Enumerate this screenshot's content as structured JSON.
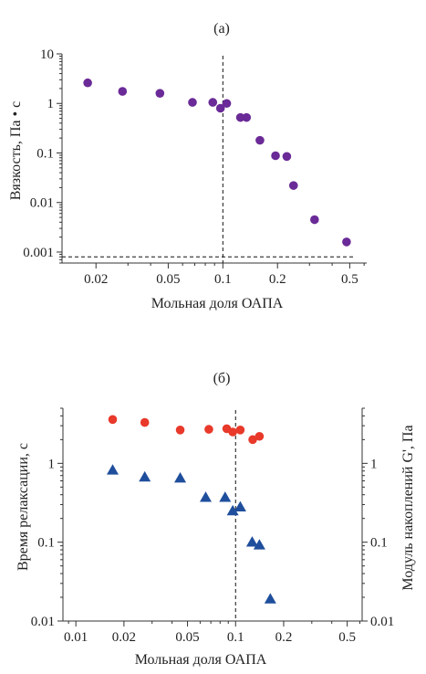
{
  "chart_data": [
    {
      "type": "scatter",
      "title": "(a)",
      "xlabel": "Мольная доля ОАПА",
      "ylabel": "Вязкость, Па • с",
      "x_scale": "log",
      "y_scale": "log",
      "xlim": [
        0.013,
        0.62
      ],
      "ylim": [
        0.0006,
        10
      ],
      "xticks": [
        0.02,
        0.05,
        0.1,
        0.2,
        0.5
      ],
      "xtick_labels": [
        "0.02",
        "0.05",
        "0.1",
        "0.2",
        "0.5"
      ],
      "yticks": [
        10,
        1,
        0.1,
        0.01,
        0.001
      ],
      "ytick_labels": [
        "10",
        "1",
        "0.1",
        "0.01",
        "0.001"
      ],
      "vertical_reference_x": 0.1,
      "horizontal_reference_y": 0.0008,
      "grid": false,
      "series": [
        {
          "marker": "circle",
          "color": "#6a2a97",
          "x": [
            0.018,
            0.028,
            0.045,
            0.068,
            0.088,
            0.097,
            0.105,
            0.125,
            0.135,
            0.16,
            0.195,
            0.225,
            0.245,
            0.32,
            0.48
          ],
          "y": [
            2.6,
            1.75,
            1.6,
            1.05,
            1.05,
            0.8,
            1.0,
            0.52,
            0.52,
            0.18,
            0.088,
            0.085,
            0.022,
            0.0045,
            0.0016
          ]
        }
      ]
    },
    {
      "type": "scatter",
      "title": "(б)",
      "xlabel": "Мольная доля ОАПА",
      "ylabel": "Время релаксации, с",
      "ylabel_right": "Модуль накоплений G', Па",
      "x_scale": "log",
      "y_scale": "log",
      "xlim": [
        0.0083,
        0.62
      ],
      "ylim": [
        0.01,
        5
      ],
      "xticks": [
        0.01,
        0.02,
        0.05,
        0.1,
        0.2,
        0.5
      ],
      "xtick_labels": [
        "0.01",
        "0.02",
        "0.05",
        "0.1",
        "0.2",
        "0.5"
      ],
      "yticks": [
        1,
        0.1,
        0.01
      ],
      "ytick_labels": [
        "1",
        "0.1",
        "0.01"
      ],
      "right_yticks": [
        1,
        0.1,
        0.01
      ],
      "right_ytick_labels": [
        "1",
        "0.1",
        "0.01"
      ],
      "vertical_reference_x": 0.1,
      "grid": false,
      "series": [
        {
          "marker": "circle",
          "color": "#e8392a",
          "x": [
            0.017,
            0.027,
            0.045,
            0.068,
            0.088,
            0.096,
            0.107,
            0.128,
            0.141
          ],
          "y": [
            3.6,
            3.3,
            2.65,
            2.7,
            2.75,
            2.5,
            2.65,
            2.0,
            2.2
          ]
        },
        {
          "marker": "triangle",
          "color": "#1f4e9c",
          "x": [
            0.017,
            0.027,
            0.045,
            0.065,
            0.086,
            0.096,
            0.107,
            0.127,
            0.141,
            0.165
          ],
          "y": [
            0.82,
            0.67,
            0.65,
            0.37,
            0.37,
            0.25,
            0.28,
            0.1,
            0.092,
            0.019
          ]
        }
      ]
    }
  ]
}
